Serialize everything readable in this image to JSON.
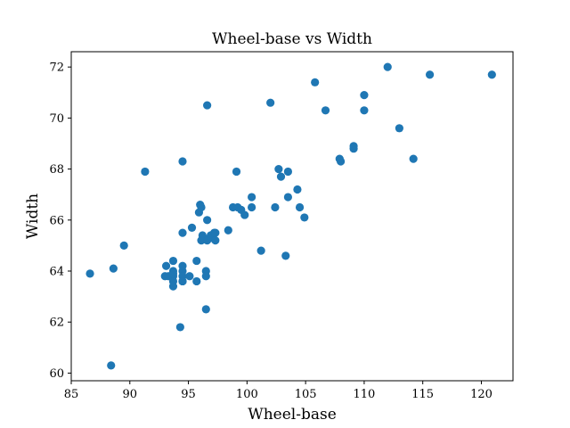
{
  "chart_data": {
    "type": "scatter",
    "title": "Wheel-base vs Width",
    "xlabel": "Wheel-base",
    "ylabel": "Width",
    "xlim": [
      85.0,
      122.7
    ],
    "ylim": [
      59.7,
      72.6
    ],
    "xticks": [
      85,
      90,
      95,
      100,
      105,
      110,
      115,
      120
    ],
    "yticks": [
      60,
      62,
      64,
      66,
      68,
      70,
      72
    ],
    "grid": false,
    "legend": "none",
    "marker_color": "#1f77b4",
    "series": [
      {
        "x": [
          86.6,
          88.4,
          88.6,
          89.5,
          91.3,
          93.0,
          93.1,
          93.3,
          93.7,
          93.7,
          93.7,
          93.7,
          93.7,
          93.7,
          94.5,
          94.5,
          94.5,
          94.5,
          94.5,
          94.3,
          94.5,
          94.5,
          95.1,
          95.3,
          95.7,
          95.7,
          95.9,
          96.0,
          96.1,
          96.1,
          96.2,
          96.3,
          96.5,
          96.5,
          96.5,
          96.6,
          96.6,
          96.6,
          96.9,
          97.0,
          97.2,
          97.3,
          97.3,
          98.4,
          98.8,
          99.1,
          99.2,
          99.5,
          99.8,
          100.4,
          100.4,
          101.2,
          102.0,
          102.4,
          102.7,
          102.9,
          103.3,
          103.5,
          103.5,
          104.3,
          104.5,
          104.9,
          105.8,
          106.7,
          107.9,
          108.0,
          109.1,
          109.1,
          110.0,
          110.0,
          112.0,
          113.0,
          114.2,
          115.6,
          120.9
        ],
        "y": [
          63.9,
          60.3,
          64.1,
          65.0,
          67.9,
          63.8,
          64.2,
          63.8,
          63.8,
          64.0,
          64.4,
          63.6,
          63.4,
          63.9,
          63.6,
          64.0,
          64.2,
          63.8,
          65.5,
          61.8,
          68.3,
          63.6,
          63.8,
          65.7,
          64.4,
          63.6,
          66.3,
          66.6,
          66.5,
          65.2,
          65.4,
          65.3,
          64.0,
          63.8,
          62.5,
          65.2,
          66.0,
          70.5,
          65.4,
          65.3,
          65.5,
          65.2,
          65.5,
          65.6,
          66.5,
          67.9,
          66.5,
          66.4,
          66.2,
          66.9,
          66.5,
          64.8,
          70.6,
          66.5,
          68.0,
          67.7,
          64.6,
          66.9,
          67.9,
          67.2,
          66.5,
          66.1,
          71.4,
          70.3,
          68.4,
          68.3,
          68.9,
          68.8,
          70.9,
          70.3,
          72.0,
          69.6,
          68.4,
          71.7,
          71.7
        ]
      }
    ]
  }
}
